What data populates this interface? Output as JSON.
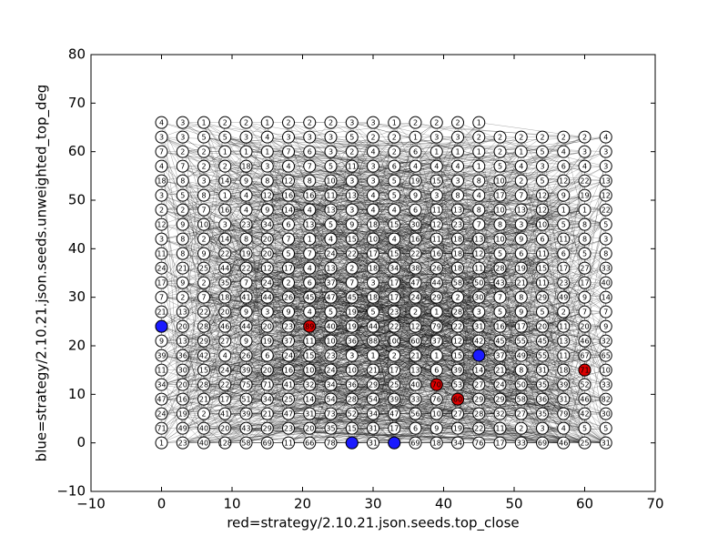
{
  "chart_data": {
    "type": "node-grid",
    "xlabel": "red=strategy/2.10.21.json.seeds.top_close",
    "ylabel": "blue=strategy/2.10.21.json.seeds.unweighted_top_deg",
    "xlim": [
      -10,
      70
    ],
    "ylim": [
      -10,
      80
    ],
    "xticks": [
      {
        "value": -10,
        "label": "−10"
      },
      0,
      10,
      20,
      30,
      40,
      50,
      60,
      70
    ],
    "yticks": [
      {
        "value": -10,
        "label": "−10"
      },
      0,
      10,
      20,
      30,
      40,
      50,
      60,
      70,
      80
    ],
    "node_color": "#ffffff",
    "x": [
      0,
      3,
      6,
      9,
      12,
      15,
      18,
      21,
      24,
      27,
      30,
      33,
      36,
      39,
      42,
      45,
      48,
      51,
      54,
      57,
      60,
      63
    ],
    "rows": [
      {
        "y": 66,
        "labels": [
          4,
          3,
          1,
          2,
          2,
          1,
          2,
          2,
          2,
          3,
          3,
          1,
          2,
          2,
          2,
          1
        ]
      },
      {
        "y": 63,
        "labels": [
          3,
          3,
          5,
          5,
          3,
          4,
          3,
          3,
          3,
          5,
          2,
          2,
          1,
          3,
          3,
          2,
          2,
          2,
          2,
          2,
          2,
          4
        ]
      },
      {
        "y": 60,
        "labels": [
          7,
          2,
          2,
          1,
          1,
          1,
          7,
          6,
          3,
          2,
          4,
          2,
          6,
          1,
          1,
          1,
          2,
          1,
          5,
          4,
          3,
          3
        ]
      },
      {
        "y": 57,
        "labels": [
          4,
          7,
          2,
          2,
          18,
          3,
          4,
          7,
          5,
          11,
          3,
          6,
          4,
          4,
          4,
          1,
          5,
          4,
          3,
          6,
          4,
          3
        ]
      },
      {
        "y": 54,
        "labels": [
          18,
          8,
          3,
          14,
          9,
          8,
          12,
          8,
          10,
          3,
          3,
          5,
          19,
          15,
          3,
          8,
          10,
          2,
          5,
          12,
          22,
          13
        ]
      },
      {
        "y": 51,
        "labels": [
          3,
          5,
          8,
          1,
          4,
          12,
          16,
          16,
          11,
          13,
          4,
          5,
          9,
          3,
          8,
          4,
          17,
          7,
          12,
          9,
          19,
          12
        ]
      },
      {
        "y": 48,
        "labels": [
          2,
          2,
          7,
          16,
          4,
          9,
          14,
          4,
          13,
          3,
          4,
          4,
          6,
          11,
          13,
          8,
          10,
          13,
          12,
          1,
          1,
          22
        ]
      },
      {
        "y": 45,
        "labels": [
          12,
          9,
          10,
          3,
          23,
          34,
          6,
          13,
          5,
          9,
          18,
          15,
          30,
          12,
          23,
          7,
          8,
          3,
          10,
          5,
          8,
          5
        ]
      },
      {
        "y": 42,
        "labels": [
          3,
          8,
          2,
          14,
          8,
          20,
          7,
          1,
          4,
          15,
          10,
          4,
          16,
          11,
          18,
          13,
          10,
          9,
          6,
          11,
          8,
          3
        ]
      },
      {
        "y": 39,
        "labels": [
          11,
          8,
          9,
          22,
          19,
          20,
          5,
          7,
          24,
          22,
          17,
          15,
          22,
          16,
          18,
          12,
          5,
          6,
          11,
          6,
          5,
          8
        ]
      },
      {
        "y": 36,
        "labels": [
          24,
          21,
          25,
          44,
          22,
          12,
          17,
          4,
          13,
          2,
          18,
          34,
          38,
          26,
          18,
          11,
          28,
          19,
          15,
          17,
          27,
          33
        ]
      },
      {
        "y": 33,
        "labels": [
          17,
          9,
          2,
          35,
          7,
          24,
          2,
          6,
          37,
          7,
          3,
          17,
          47,
          44,
          58,
          50,
          43,
          21,
          11,
          23,
          17,
          40
        ]
      },
      {
        "y": 30,
        "labels": [
          7,
          2,
          7,
          18,
          41,
          44,
          26,
          45,
          47,
          45,
          18,
          17,
          24,
          29,
          2,
          30,
          7,
          8,
          29,
          49,
          9,
          14
        ]
      },
      {
        "y": 27,
        "labels": [
          21,
          13,
          22,
          20,
          9,
          3,
          9,
          4,
          5,
          19,
          5,
          23,
          2,
          1,
          28,
          3,
          5,
          9,
          5,
          2,
          7,
          7
        ]
      },
      {
        "y": 24,
        "labels": [
          null,
          20,
          28,
          46,
          44,
          20,
          23,
          89,
          40,
          19,
          44,
          22,
          12,
          79,
          22,
          31,
          16,
          17,
          20,
          11,
          20,
          9
        ]
      },
      {
        "y": 21,
        "labels": [
          9,
          13,
          29,
          27,
          9,
          19,
          37,
          11,
          10,
          36,
          88,
          100,
          60,
          37,
          12,
          42,
          45,
          55,
          45,
          13,
          46,
          32
        ]
      },
      {
        "y": 18,
        "labels": [
          39,
          36,
          42,
          4,
          26,
          6,
          24,
          15,
          23,
          3,
          1,
          2,
          21,
          1,
          15,
          null,
          37,
          49,
          55,
          11,
          67,
          65
        ]
      },
      {
        "y": 15,
        "labels": [
          11,
          30,
          15,
          24,
          39,
          20,
          16,
          10,
          24,
          10,
          21,
          17,
          13,
          6,
          39,
          14,
          21,
          8,
          31,
          18,
          71,
          10
        ]
      },
      {
        "y": 12,
        "labels": [
          34,
          20,
          28,
          22,
          75,
          71,
          41,
          32,
          34,
          36,
          29,
          25,
          40,
          70,
          53,
          27,
          24,
          50,
          35,
          39,
          52,
          33
        ]
      },
      {
        "y": 9,
        "labels": [
          47,
          16,
          21,
          17,
          51,
          34,
          25,
          14,
          54,
          28,
          54,
          39,
          33,
          76,
          60,
          29,
          29,
          58,
          36,
          31,
          46,
          82
        ]
      },
      {
        "y": 6,
        "labels": [
          24,
          19,
          2,
          41,
          39,
          21,
          47,
          31,
          73,
          52,
          34,
          47,
          56,
          10,
          27,
          28,
          32,
          27,
          35,
          79,
          42,
          30
        ]
      },
      {
        "y": 3,
        "labels": [
          71,
          49,
          40,
          20,
          43,
          29,
          23,
          20,
          35,
          15,
          31,
          17,
          6,
          9,
          19,
          22,
          11,
          2,
          3,
          4,
          5,
          5
        ]
      },
      {
        "y": 0,
        "labels": [
          1,
          23,
          40,
          128,
          58,
          69,
          11,
          66,
          78,
          null,
          31,
          null,
          69,
          18,
          34,
          76,
          17,
          33,
          69,
          46,
          25,
          31
        ]
      }
    ],
    "highlights": [
      {
        "x": 0,
        "y": 24,
        "color": "#1a1aff"
      },
      {
        "x": 27,
        "y": 0,
        "color": "#1a1aff"
      },
      {
        "x": 33,
        "y": 0,
        "color": "#1a1aff"
      },
      {
        "x": 45,
        "y": 18,
        "color": "#1a1aff"
      },
      {
        "x": 21,
        "y": 24,
        "color": "#dd0000"
      },
      {
        "x": 39,
        "y": 12,
        "color": "#dd0000"
      },
      {
        "x": 42,
        "y": 9,
        "color": "#dd0000"
      },
      {
        "x": 60,
        "y": 15,
        "color": "#dd0000"
      }
    ]
  }
}
